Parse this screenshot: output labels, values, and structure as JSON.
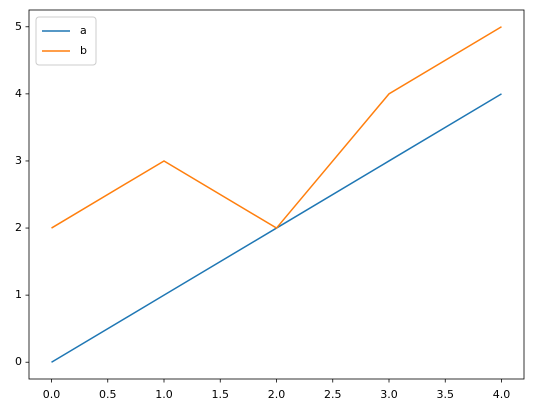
{
  "chart_data": {
    "type": "line",
    "x": [
      0,
      1,
      2,
      3,
      4
    ],
    "series": [
      {
        "name": "a",
        "color": "#1f77b4",
        "values": [
          0,
          1,
          2,
          3,
          4
        ]
      },
      {
        "name": "b",
        "color": "#ff7f0e",
        "values": [
          2,
          3,
          2,
          4,
          5
        ]
      }
    ],
    "xlim": [
      -0.2,
      4.2
    ],
    "xticks": [
      {
        "value": 0,
        "label": "0.0"
      },
      0.5,
      {
        "value": 1,
        "label": "1.0"
      },
      1.5,
      {
        "value": 2,
        "label": "2.0"
      },
      2.5,
      {
        "value": 3,
        "label": "3.0"
      },
      3.5,
      {
        "value": 4,
        "label": "4.0"
      }
    ],
    "ylim": [
      -0.25,
      5.25
    ],
    "yticks": [
      0,
      1,
      2,
      3,
      4,
      5
    ],
    "grid": false,
    "legend": "upper-left"
  }
}
